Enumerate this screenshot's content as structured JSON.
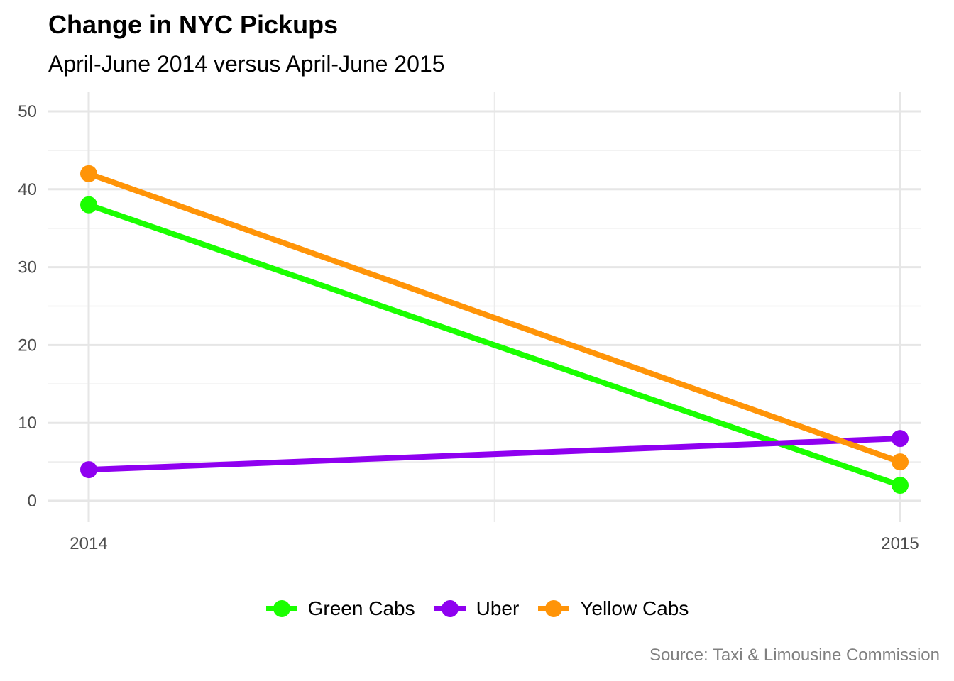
{
  "title": "Change in NYC Pickups",
  "subtitle": "April-June 2014 versus April-June 2015",
  "caption": "Source: Taxi & Limousine Commission",
  "chart_data": {
    "type": "line",
    "x": [
      "2014",
      "2015"
    ],
    "xlabel": "",
    "ylabel": "",
    "ylim": [
      0,
      50
    ],
    "yticks": [
      0,
      10,
      20,
      30,
      40,
      50
    ],
    "grid": true,
    "legend_position": "bottom",
    "series": [
      {
        "name": "Green Cabs",
        "color": "#1aff00",
        "values": [
          38,
          2
        ]
      },
      {
        "name": "Uber",
        "color": "#8f00f0",
        "values": [
          4,
          8
        ]
      },
      {
        "name": "Yellow Cabs",
        "color": "#ff9408",
        "values": [
          42,
          5
        ]
      }
    ]
  }
}
